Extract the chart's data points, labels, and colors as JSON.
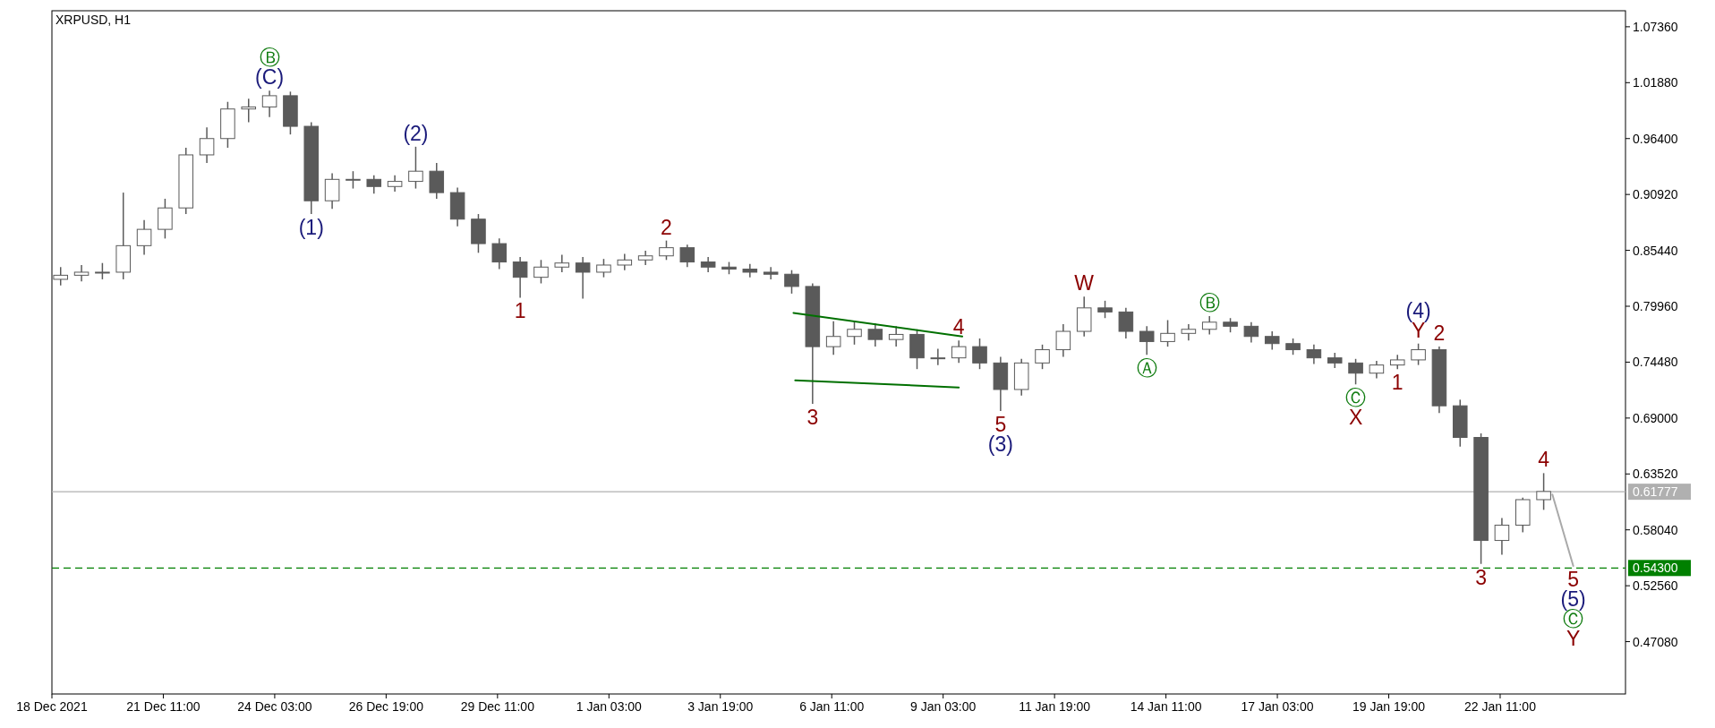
{
  "chart_data": {
    "type": "candlestick",
    "title": "XRPUSD, H1",
    "color": "#5a5a5a",
    "x": [
      "2021-12-19T00:00",
      "2021-12-19T12:00",
      "2021-12-20T00:00",
      "2021-12-20T12:00",
      "2021-12-21T00:00",
      "2021-12-21T12:00",
      "2021-12-22T00:00",
      "2021-12-22T12:00",
      "2021-12-23T00:00",
      "2021-12-23T12:00",
      "2021-12-24T00:00",
      "2021-12-24T12:00",
      "2021-12-25T00:00",
      "2021-12-25T12:00",
      "2021-12-26T00:00",
      "2021-12-26T12:00",
      "2021-12-27T00:00",
      "2021-12-27T12:00",
      "2021-12-28T00:00",
      "2021-12-28T12:00",
      "2021-12-29T00:00",
      "2021-12-29T12:00",
      "2021-12-30T00:00",
      "2021-12-30T12:00",
      "2021-12-31T00:00",
      "2021-12-31T12:00",
      "2022-01-01T00:00",
      "2022-01-01T12:00",
      "2022-01-02T00:00",
      "2022-01-02T12:00",
      "2022-01-03T00:00",
      "2022-01-03T12:00",
      "2022-01-04T00:00",
      "2022-01-04T12:00",
      "2022-01-05T00:00",
      "2022-01-05T12:00",
      "2022-01-06T00:00",
      "2022-01-06T12:00",
      "2022-01-07T00:00",
      "2022-01-07T12:00",
      "2022-01-08T00:00",
      "2022-01-08T12:00",
      "2022-01-09T00:00",
      "2022-01-09T12:00",
      "2022-01-10T00:00",
      "2022-01-10T12:00",
      "2022-01-11T00:00",
      "2022-01-11T12:00",
      "2022-01-12T00:00",
      "2022-01-12T12:00",
      "2022-01-13T00:00",
      "2022-01-13T12:00",
      "2022-01-14T00:00",
      "2022-01-14T12:00",
      "2022-01-15T00:00",
      "2022-01-15T12:00",
      "2022-01-16T00:00",
      "2022-01-16T12:00",
      "2022-01-17T00:00",
      "2022-01-17T12:00",
      "2022-01-18T00:00",
      "2022-01-18T12:00",
      "2022-01-19T00:00",
      "2022-01-19T12:00",
      "2022-01-20T00:00",
      "2022-01-20T12:00",
      "2022-01-21T00:00",
      "2022-01-21T12:00",
      "2022-01-22T00:00",
      "2022-01-22T12:00",
      "2022-01-23T00:00",
      "2022-01-23T12:00"
    ],
    "ohlc": [
      [
        0.826,
        0.838,
        0.82,
        0.83
      ],
      [
        0.83,
        0.84,
        0.824,
        0.833
      ],
      [
        0.833,
        0.842,
        0.826,
        0.833
      ],
      [
        0.833,
        0.911,
        0.826,
        0.859
      ],
      [
        0.859,
        0.884,
        0.85,
        0.875
      ],
      [
        0.875,
        0.905,
        0.866,
        0.896
      ],
      [
        0.896,
        0.955,
        0.89,
        0.948
      ],
      [
        0.948,
        0.975,
        0.94,
        0.964
      ],
      [
        0.964,
        1.0,
        0.955,
        0.993
      ],
      [
        0.993,
        1.003,
        0.98,
        0.995
      ],
      [
        0.995,
        1.011,
        0.985,
        1.006
      ],
      [
        1.006,
        1.01,
        0.968,
        0.976
      ],
      [
        0.976,
        0.98,
        0.89,
        0.903
      ],
      [
        0.903,
        0.93,
        0.895,
        0.924
      ],
      [
        0.924,
        0.932,
        0.915,
        0.924
      ],
      [
        0.924,
        0.928,
        0.91,
        0.917
      ],
      [
        0.917,
        0.928,
        0.912,
        0.922
      ],
      [
        0.922,
        0.956,
        0.915,
        0.932
      ],
      [
        0.932,
        0.94,
        0.905,
        0.911
      ],
      [
        0.911,
        0.916,
        0.878,
        0.885
      ],
      [
        0.885,
        0.89,
        0.852,
        0.861
      ],
      [
        0.861,
        0.866,
        0.836,
        0.843
      ],
      [
        0.843,
        0.848,
        0.808,
        0.828
      ],
      [
        0.828,
        0.845,
        0.822,
        0.838
      ],
      [
        0.838,
        0.85,
        0.833,
        0.842
      ],
      [
        0.842,
        0.848,
        0.807,
        0.833
      ],
      [
        0.833,
        0.846,
        0.828,
        0.84
      ],
      [
        0.84,
        0.851,
        0.835,
        0.845
      ],
      [
        0.845,
        0.854,
        0.84,
        0.849
      ],
      [
        0.849,
        0.864,
        0.845,
        0.857
      ],
      [
        0.857,
        0.86,
        0.838,
        0.843
      ],
      [
        0.843,
        0.848,
        0.833,
        0.838
      ],
      [
        0.838,
        0.843,
        0.831,
        0.836
      ],
      [
        0.836,
        0.841,
        0.828,
        0.833
      ],
      [
        0.833,
        0.838,
        0.826,
        0.831
      ],
      [
        0.831,
        0.835,
        0.812,
        0.819
      ],
      [
        0.819,
        0.822,
        0.704,
        0.76
      ],
      [
        0.76,
        0.785,
        0.752,
        0.77
      ],
      [
        0.77,
        0.785,
        0.762,
        0.777
      ],
      [
        0.777,
        0.783,
        0.76,
        0.767
      ],
      [
        0.767,
        0.78,
        0.76,
        0.772
      ],
      [
        0.772,
        0.777,
        0.738,
        0.749
      ],
      [
        0.749,
        0.758,
        0.742,
        0.749
      ],
      [
        0.749,
        0.766,
        0.744,
        0.76
      ],
      [
        0.76,
        0.768,
        0.738,
        0.744
      ],
      [
        0.744,
        0.75,
        0.697,
        0.718
      ],
      [
        0.718,
        0.748,
        0.712,
        0.744
      ],
      [
        0.744,
        0.762,
        0.738,
        0.757
      ],
      [
        0.757,
        0.782,
        0.75,
        0.775
      ],
      [
        0.775,
        0.809,
        0.77,
        0.798
      ],
      [
        0.798,
        0.805,
        0.788,
        0.794
      ],
      [
        0.794,
        0.798,
        0.768,
        0.775
      ],
      [
        0.775,
        0.78,
        0.752,
        0.765
      ],
      [
        0.765,
        0.786,
        0.76,
        0.773
      ],
      [
        0.773,
        0.782,
        0.766,
        0.777
      ],
      [
        0.777,
        0.79,
        0.772,
        0.784
      ],
      [
        0.784,
        0.788,
        0.774,
        0.78
      ],
      [
        0.78,
        0.784,
        0.764,
        0.77
      ],
      [
        0.77,
        0.775,
        0.757,
        0.763
      ],
      [
        0.763,
        0.768,
        0.752,
        0.757
      ],
      [
        0.757,
        0.762,
        0.743,
        0.749
      ],
      [
        0.749,
        0.754,
        0.739,
        0.744
      ],
      [
        0.744,
        0.748,
        0.723,
        0.734
      ],
      [
        0.734,
        0.746,
        0.729,
        0.742
      ],
      [
        0.742,
        0.752,
        0.738,
        0.747
      ],
      [
        0.747,
        0.763,
        0.742,
        0.757
      ],
      [
        0.757,
        0.76,
        0.695,
        0.702
      ],
      [
        0.702,
        0.708,
        0.662,
        0.671
      ],
      [
        0.671,
        0.675,
        0.547,
        0.57
      ],
      [
        0.57,
        0.592,
        0.556,
        0.585
      ],
      [
        0.585,
        0.612,
        0.578,
        0.61
      ],
      [
        0.61,
        0.636,
        0.6,
        0.618
      ]
    ],
    "series": [
      {
        "type": "line",
        "color": "#007000",
        "x": [
          "2022-01-05T13:00",
          "2022-01-09T14:00"
        ],
        "values": [
          0.793,
          0.77
        ]
      },
      {
        "type": "line",
        "color": "#007000",
        "x": [
          "2022-01-05T14:00",
          "2022-01-09T12:00"
        ],
        "values": [
          0.727,
          0.72
        ]
      },
      {
        "type": "line",
        "color": "#a9a9a9",
        "x": [
          "2022-01-23T17:00",
          "2022-01-24T05:00"
        ],
        "values": [
          0.615,
          0.545
        ]
      }
    ],
    "xlim": [
      "2021-12-18T19:00",
      "2022-01-25T11:00"
    ],
    "xticks": [
      {
        "value": "2021-12-18T19:00",
        "label": "18 Dec 2021"
      },
      {
        "value": "2021-12-21T11:00",
        "label": "21 Dec 11:00"
      },
      {
        "value": "2021-12-24T03:00",
        "label": "24 Dec 03:00"
      },
      {
        "value": "2021-12-26T19:00",
        "label": "26 Dec 19:00"
      },
      {
        "value": "2021-12-29T11:00",
        "label": "29 Dec 11:00"
      },
      {
        "value": "2022-01-01T03:00",
        "label": "1 Jan 03:00"
      },
      {
        "value": "2022-01-03T19:00",
        "label": "3 Jan 19:00"
      },
      {
        "value": "2022-01-06T11:00",
        "label": "6 Jan 11:00"
      },
      {
        "value": "2022-01-09T03:00",
        "label": "9 Jan 03:00"
      },
      {
        "value": "2022-01-11T19:00",
        "label": "11 Jan 19:00"
      },
      {
        "value": "2022-01-14T11:00",
        "label": "14 Jan 11:00"
      },
      {
        "value": "2022-01-17T03:00",
        "label": "17 Jan 03:00"
      },
      {
        "value": "2022-01-19T19:00",
        "label": "19 Jan 19:00"
      },
      {
        "value": "2022-01-22T11:00",
        "label": "22 Jan 11:00"
      }
    ],
    "ylim": [
      0.4195,
      1.0893
    ],
    "yticks": [
      {
        "value": 1.0736,
        "label": "1.07360"
      },
      {
        "value": 1.0188,
        "label": "1.01880"
      },
      {
        "value": 0.964,
        "label": "0.96400"
      },
      {
        "value": 0.9092,
        "label": "0.90920"
      },
      {
        "value": 0.8544,
        "label": "0.85440"
      },
      {
        "value": 0.7996,
        "label": "0.79960"
      },
      {
        "value": 0.7448,
        "label": "0.74480"
      },
      {
        "value": 0.69,
        "label": "0.69000"
      },
      {
        "value": 0.6352,
        "label": "0.63520"
      },
      {
        "value": 0.5804,
        "label": "0.58040"
      },
      {
        "value": 0.5256,
        "label": "0.52560"
      },
      {
        "value": 0.4708,
        "label": "0.47080"
      }
    ],
    "ref_lines": [
      {
        "axis": "y",
        "value": 0.61777,
        "label": "0.61777",
        "color": "#b0b0b0",
        "line_style": "solid"
      },
      {
        "axis": "y",
        "value": 0.543,
        "label": "0.54300",
        "color": "#008000",
        "line_style": "dashed"
      }
    ],
    "annotations": [
      {
        "text": "(C)",
        "x": "2021-12-24T00:00",
        "y": 1.011
      },
      {
        "text": "Ⓑ",
        "x": "2021-12-24T00:00",
        "y": 1.011
      },
      {
        "text": "(1)",
        "x": "2021-12-25T00:00",
        "y": 0.89
      },
      {
        "text": "(2)",
        "x": "2021-12-27T12:00",
        "y": 0.956
      },
      {
        "text": "1",
        "x": "2021-12-30T00:00",
        "y": 0.808
      },
      {
        "text": "2",
        "x": "2022-01-02T12:00",
        "y": 0.864
      },
      {
        "text": "3",
        "x": "2022-01-06T00:00",
        "y": 0.704
      },
      {
        "text": "4",
        "x": "2022-01-09T12:00",
        "y": 0.766
      },
      {
        "text": "5",
        "x": "2022-01-10T12:00",
        "y": 0.697
      },
      {
        "text": "(3)",
        "x": "2022-01-10T12:00",
        "y": 0.697
      },
      {
        "text": "W",
        "x": "2022-01-12T12:00",
        "y": 0.809
      },
      {
        "text": "Ⓐ",
        "x": "2022-01-14T00:00",
        "y": 0.752
      },
      {
        "text": "Ⓑ",
        "x": "2022-01-15T12:00",
        "y": 0.79
      },
      {
        "text": "Ⓒ",
        "x": "2022-01-19T00:00",
        "y": 0.723
      },
      {
        "text": "X",
        "x": "2022-01-19T00:00",
        "y": 0.723
      },
      {
        "text": "Y",
        "x": "2022-01-20T12:00",
        "y": 0.763
      },
      {
        "text": "(4)",
        "x": "2022-01-20T12:00",
        "y": 0.763
      },
      {
        "text": "1",
        "x": "2022-01-20T00:00",
        "y": 0.738
      },
      {
        "text": "2",
        "x": "2022-01-21T00:00",
        "y": 0.76
      },
      {
        "text": "3",
        "x": "2022-01-22T00:00",
        "y": 0.547
      },
      {
        "text": "4",
        "x": "2022-01-23T12:00",
        "y": 0.636
      },
      {
        "text": "5",
        "x": "2022-01-24T05:00",
        "y": 0.545
      },
      {
        "text": "(5)",
        "x": "2022-01-24T05:00",
        "y": 0.545
      },
      {
        "text": "Ⓒ",
        "x": "2022-01-24T05:00",
        "y": 0.545
      },
      {
        "text": "Y",
        "x": "2022-01-24T05:00",
        "y": 0.545
      }
    ]
  }
}
